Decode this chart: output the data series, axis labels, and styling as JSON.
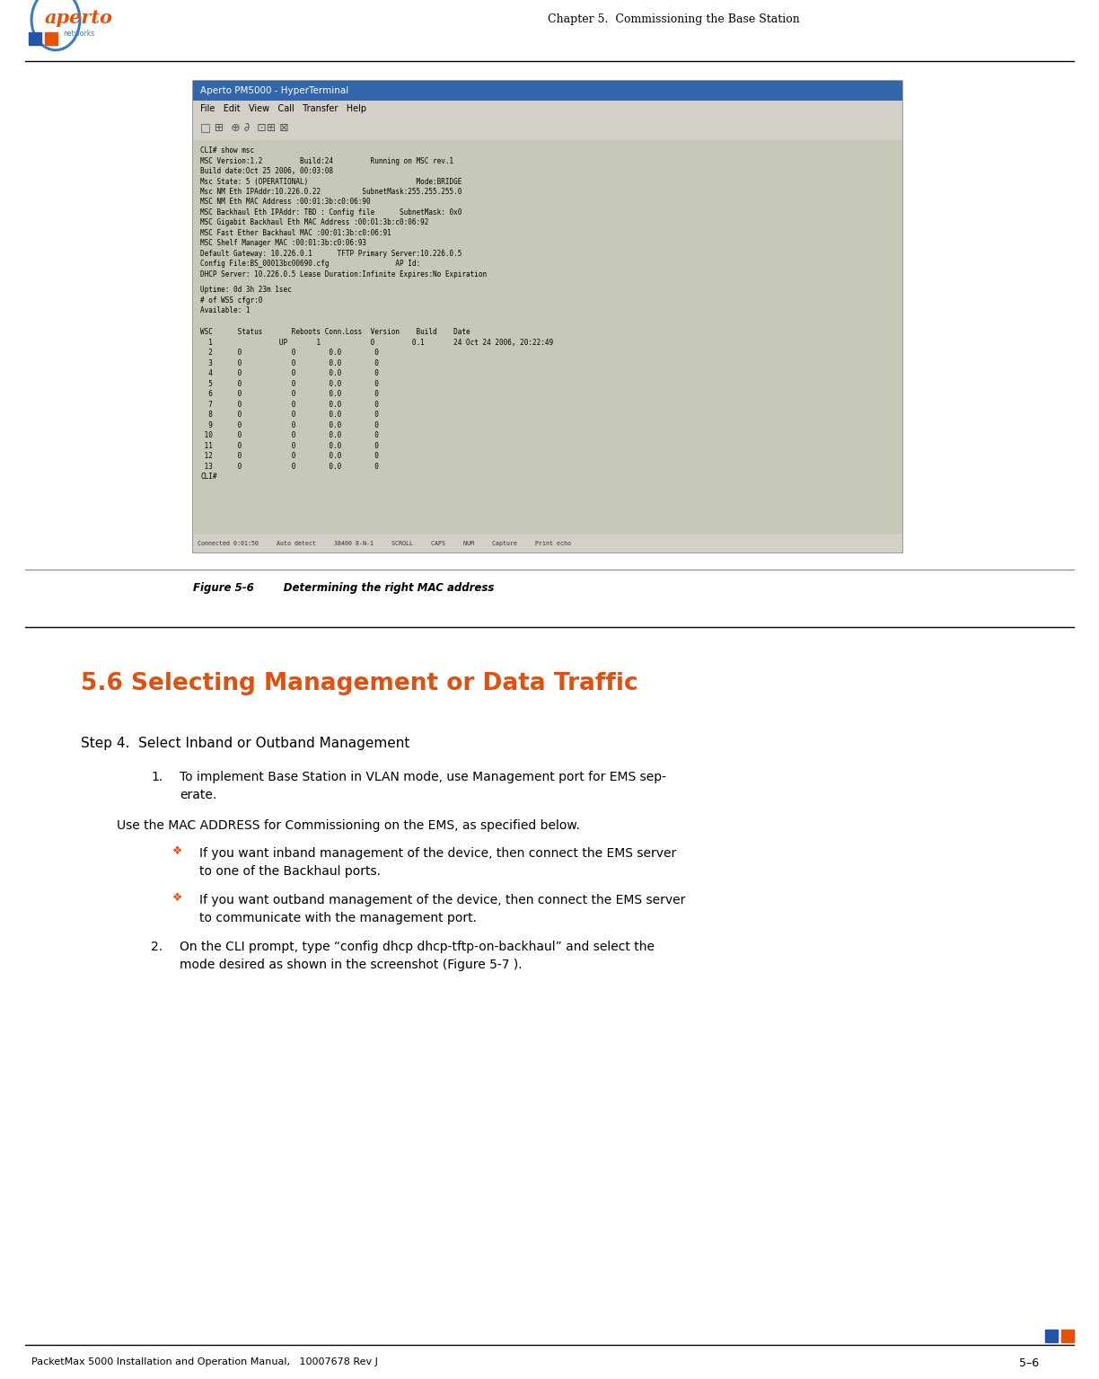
{
  "page_width": 12.24,
  "page_height": 15.35,
  "bg_color": "#ffffff",
  "header": {
    "chapter_text": "Chapter 5.  Commissioning the Base Station",
    "chapter_color": "#000000",
    "logo_text": "aperto",
    "logo_color": "#e8500a",
    "logo_arc_color": "#3a7dbf"
  },
  "footer": {
    "left_text": "PacketMax 5000 Installation and Operation Manual,   10007678 Rev J",
    "right_text": "5–6",
    "fontsize": 9,
    "color": "#000000"
  },
  "header_line_color": "#000000",
  "footer_line_color": "#000000",
  "blue_rect_color": "#2255aa",
  "orange_rect_color": "#e8500a",
  "terminal_window": {
    "title": "Aperto PM5000 - HyperTerminal",
    "title_bg": "#3366aa",
    "title_fg": "#ffffff",
    "window_bg": "#c0c0c0",
    "content_bg": "#c8c8b8",
    "content_fg": "#000000",
    "content_lines": [
      "CLI# show msc",
      "MSC Version:1.2         Build:24         Running on MSC rev.1",
      "Build date:Oct 25 2006, 00:03:08",
      "Msc State: 5 (OPERATIONAL)                          Mode:BRIDGE",
      "Msc NM Eth IPAddr:10.226.0.22          SubnetMask:255.255.255.0",
      "MSC NM Eth MAC Address :00:01:3b:c0:06:90",
      "MSC Backhaul Eth IPAddr: TBD : Config file      SubnetMask: 0x0",
      "MSC Gigabit Backhaul Eth MAC Address :00:01:3b:c0:06:92",
      "MSC Fast Ether Backhaul MAC :00:01:3b:c0:06:91",
      "MSC Shelf Manager MAC :00:01:3b:c0:06:93",
      "Default Gateway: 10.226.0.1      TFTP Primary Server:10.226.0.5",
      "Config File:BS_00013bc00690.cfg                AP Id:",
      "DHCP Server: 10.226.0.5 Lease Duration:Infinite Expires:No Expiration"
    ],
    "uptime_lines": [
      "Uptime: 0d 3h 23m 1sec",
      "# of WSS cfgr:0",
      "Available: 1"
    ],
    "table_header": "WSC      Status       Reboots Conn.Loss  Version    Build    Date",
    "table_row1": "  1                UP       1            0         0.1       24 Oct 24 2006, 20:22:49",
    "table_rows": [
      "  2      0            0        0.0        0",
      "  3      0            0        0.0        0",
      "  4      0            0        0.0        0",
      "  5      0            0        0.0        0",
      "  6      0            0        0.0        0",
      "  7      0            0        0.0        0",
      "  8      0            0        0.0        0",
      "  9      0            0        0.0        0",
      " 10      0            0        0.0        0",
      " 11      0            0        0.0        0",
      " 12      0            0        0.0        0",
      " 13      0            0        0.0        0"
    ],
    "cli_prompt": "CLI#",
    "status_bar": "Connected 0:01:50     Auto detect     38400 8-N-1     SCROLL     CAPS     NUM     Capture     Print echo"
  },
  "figure_caption": "Figure 5-6        Determining the right MAC address",
  "section_title": "5.6 Selecting Management or Data Traffic",
  "section_title_color": "#e05010",
  "section_divider_color": "#000000",
  "step_heading": "Step 4.  Select Inband or Outband Management",
  "body_paragraphs": [
    {
      "type": "numbered",
      "number": "1.",
      "text": "To implement Base Station in VLAN mode, use Management port for EMS sep-\nerate."
    },
    {
      "type": "plain",
      "text": "Use the MAC ADDRESS for Commissioning on the EMS, as specified below."
    },
    {
      "type": "bullet",
      "symbol": "❖",
      "text": "If you want inband management of the device, then connect the EMS server\nto one of the Backhaul ports."
    },
    {
      "type": "bullet",
      "symbol": "❖",
      "text": "If you want outband management of the device, then connect the EMS server\nto communicate with the management port."
    },
    {
      "type": "numbered",
      "number": "2.",
      "text": "On the CLI prompt, type “config dhcp dhcp-tftp-on-backhaul” and select the\nmode desired as shown in the screenshot (Figure 5-7 )."
    }
  ]
}
